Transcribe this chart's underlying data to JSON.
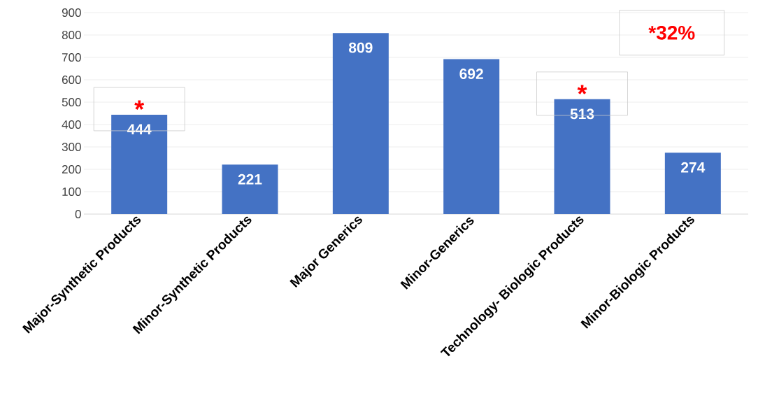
{
  "chart_data": {
    "type": "bar",
    "categories": [
      "Major-Synthetic Products",
      "Minor-Synthetic Products",
      "Major Generics",
      "Minor-Generics",
      "Technology- Biologic Products",
      "Minor-Biologic Products"
    ],
    "values": [
      444,
      221,
      809,
      692,
      513,
      274
    ],
    "color": "#4472c4",
    "ylim": [
      0,
      900
    ],
    "yticks": [
      0,
      100,
      200,
      300,
      400,
      500,
      600,
      700,
      800,
      900
    ],
    "grid": "y",
    "data_labels": true,
    "annotations": [
      {
        "text": "*",
        "x": "Major-Synthetic Products",
        "y": 444
      },
      {
        "text": "*",
        "x": "Technology- Biologic Products",
        "y": 513
      },
      "*32%"
    ]
  }
}
